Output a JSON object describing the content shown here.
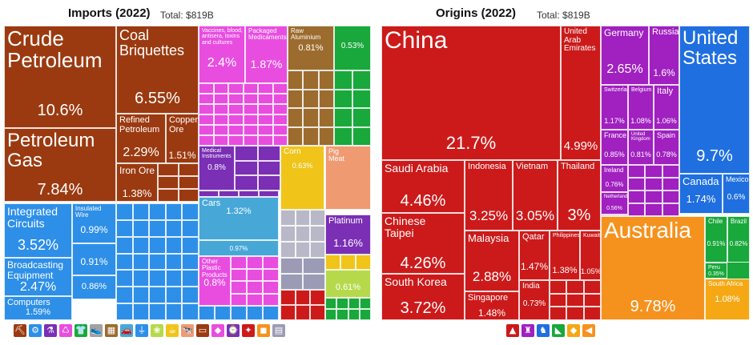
{
  "chart_data": [
    {
      "type": "treemap",
      "title": "Imports (2022)",
      "total": "Total: $819B",
      "tiles": [
        {
          "label": "Crude\nPetroleum",
          "value": "10.6%",
          "color": "#9b3a10"
        },
        {
          "label": "Petroleum\nGas",
          "value": "7.84%",
          "color": "#9b3a10"
        },
        {
          "label": "Coal\nBriquettes",
          "value": "6.55%",
          "color": "#9b3a10"
        },
        {
          "label": "Refined\nPetroleum",
          "value": "2.29%",
          "color": "#9b3a10"
        },
        {
          "label": "Copper\nOre",
          "value": "1.51%",
          "color": "#9b3a10"
        },
        {
          "label": "Iron Ore",
          "value": "1.38%",
          "color": "#9b3a10"
        },
        {
          "label": "Integrated\nCircuits",
          "value": "3.52%",
          "color": "#2e8fe8"
        },
        {
          "label": "Broadcasting\nEquipment",
          "value": "2.47%",
          "color": "#2e8fe8"
        },
        {
          "label": "Computers",
          "value": "1.59%",
          "color": "#2e8fe8"
        },
        {
          "label": "Insulated\nWire",
          "value": "0.99%",
          "color": "#2e8fe8"
        },
        {
          "label": "",
          "value": "0.91%",
          "color": "#2e8fe8"
        },
        {
          "label": "",
          "value": "0.86%",
          "color": "#2e8fe8"
        },
        {
          "label": "Vaccines, blood,\nantisera, toxins\nand cultures",
          "value": "2.4%",
          "color": "#e84de0"
        },
        {
          "label": "Packaged\nMedicaments",
          "value": "1.87%",
          "color": "#e84de0"
        },
        {
          "label": "Medical\nInstruments",
          "value": "0.8%",
          "color": "#7a2fb5"
        },
        {
          "label": "Cars",
          "value": "1.32%",
          "color": "#47a8d8"
        },
        {
          "label": "",
          "value": "0.97%",
          "color": "#47a8d8"
        },
        {
          "label": "Other Plastic\nProducts",
          "value": "0.8%",
          "color": "#e84de0"
        },
        {
          "label": "Raw\nAluminium",
          "value": "0.81%",
          "color": "#9c6b2e"
        },
        {
          "label": "Corn",
          "value": "0.63%",
          "color": "#f0c419"
        },
        {
          "label": "Pig\nMeat",
          "value": "",
          "color": "#f09a72"
        },
        {
          "label": "Platinum",
          "value": "1.16%",
          "color": "#7a2fb5"
        },
        {
          "label": "",
          "value": "0.61%",
          "color": "#b6d94c"
        },
        {
          "label": "",
          "value": "0.53%",
          "color": "#19a83b"
        }
      ],
      "legend_icons": [
        "mineral",
        "machine",
        "chemical",
        "plastic",
        "textile",
        "footwear",
        "metal",
        "transport",
        "electronic",
        "vegetable",
        "food",
        "animal",
        "hide",
        "art",
        "instrument",
        "weapon",
        "stone",
        "misc"
      ]
    },
    {
      "type": "treemap",
      "title": "Origins (2022)",
      "total": "Total: $819B",
      "tiles": [
        {
          "label": "China",
          "value": "21.7%",
          "color": "#cc1a1a"
        },
        {
          "label": "United\nArab\nEmirates",
          "value": "4.99%",
          "color": "#cc1a1a"
        },
        {
          "label": "Saudi Arabia",
          "value": "4.46%",
          "color": "#cc1a1a"
        },
        {
          "label": "Chinese\nTaipei",
          "value": "4.26%",
          "color": "#cc1a1a"
        },
        {
          "label": "South Korea",
          "value": "3.72%",
          "color": "#cc1a1a"
        },
        {
          "label": "Indonesia",
          "value": "3.25%",
          "color": "#cc1a1a"
        },
        {
          "label": "Vietnam",
          "value": "3.05%",
          "color": "#cc1a1a"
        },
        {
          "label": "Thailand",
          "value": "3%",
          "color": "#cc1a1a"
        },
        {
          "label": "Malaysia",
          "value": "2.88%",
          "color": "#cc1a1a"
        },
        {
          "label": "Qatar",
          "value": "1.47%",
          "color": "#cc1a1a"
        },
        {
          "label": "Philippines",
          "value": "1.38%",
          "color": "#cc1a1a"
        },
        {
          "label": "Kuwait",
          "value": "1.05%",
          "color": "#cc1a1a"
        },
        {
          "label": "Singapore",
          "value": "1.48%",
          "color": "#cc1a1a"
        },
        {
          "label": "India",
          "value": "0.73%",
          "color": "#cc1a1a"
        },
        {
          "label": "Germany",
          "value": "2.65%",
          "color": "#a020c0"
        },
        {
          "label": "Russia",
          "value": "1.6%",
          "color": "#a020c0"
        },
        {
          "label": "Switzerland",
          "value": "1.17%",
          "color": "#a020c0"
        },
        {
          "label": "Belgium",
          "value": "1.08%",
          "color": "#a020c0"
        },
        {
          "label": "Italy",
          "value": "1.06%",
          "color": "#a020c0"
        },
        {
          "label": "France",
          "value": "0.85%",
          "color": "#a020c0"
        },
        {
          "label": "United\nKingdom",
          "value": "0.81%",
          "color": "#a020c0"
        },
        {
          "label": "Spain",
          "value": "0.78%",
          "color": "#a020c0"
        },
        {
          "label": "Ireland",
          "value": "0.76%",
          "color": "#a020c0"
        },
        {
          "label": "Netherlands",
          "value": "0.56%",
          "color": "#a020c0"
        },
        {
          "label": "United\nStates",
          "value": "9.7%",
          "color": "#1f6fe0"
        },
        {
          "label": "Canada",
          "value": "1.74%",
          "color": "#1f6fe0"
        },
        {
          "label": "Mexico",
          "value": "0.6%",
          "color": "#1f6fe0"
        },
        {
          "label": "Australia",
          "value": "9.78%",
          "color": "#f5921e"
        },
        {
          "label": "Chile",
          "value": "0.91%",
          "color": "#19a83b"
        },
        {
          "label": "Brazil",
          "value": "0.82%",
          "color": "#19a83b"
        },
        {
          "label": "Peru",
          "value": "0.35%",
          "color": "#19a83b"
        },
        {
          "label": "South Africa",
          "value": "1.08%",
          "color": "#f5a814"
        }
      ],
      "legend_icons": [
        "asia",
        "europe",
        "north-america",
        "south-america",
        "africa",
        "oceania"
      ]
    }
  ]
}
